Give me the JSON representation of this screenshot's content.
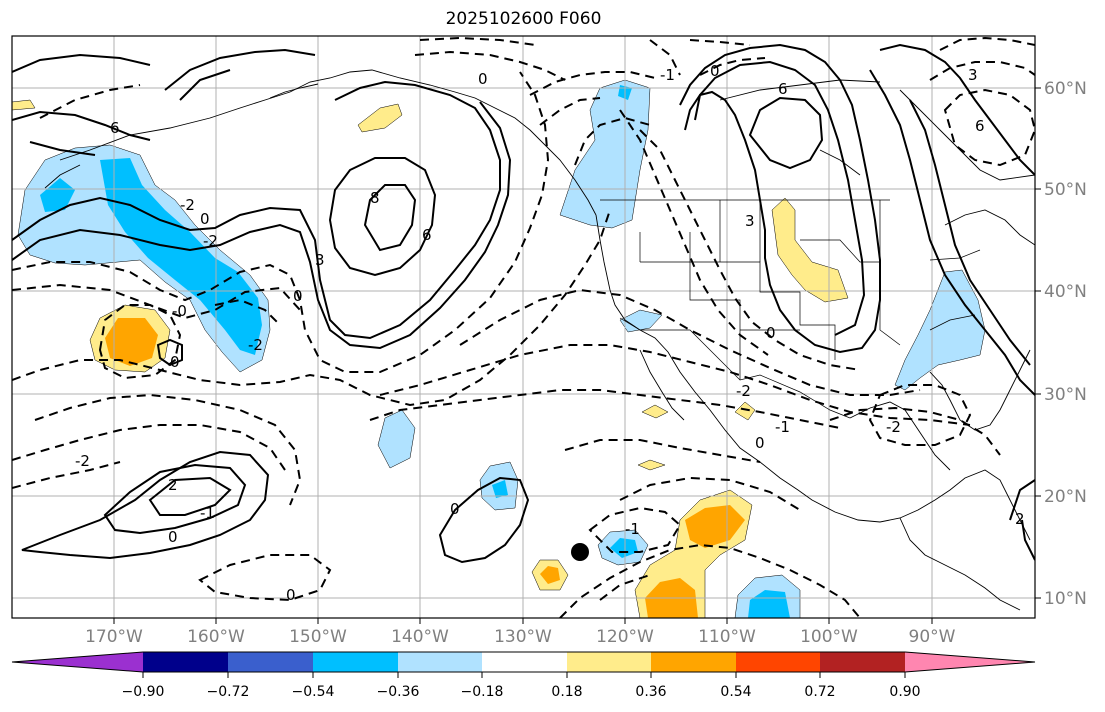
{
  "title": "2025102600 F060",
  "map": {
    "lat_labels": [
      "60°N",
      "50°N",
      "40°N",
      "30°N",
      "20°N",
      "10°N"
    ],
    "lon_labels": [
      "170°W",
      "160°W",
      "150°W",
      "140°W",
      "130°W",
      "120°W",
      "110°W",
      "100°W",
      "90°W"
    ],
    "lat_values": [
      60,
      50,
      40,
      30,
      20,
      10
    ],
    "lon_values": [
      -170,
      -160,
      -150,
      -140,
      -130,
      -120,
      -110,
      -100,
      -90
    ],
    "contour_labels": [
      "6",
      "-2",
      "0",
      "-2",
      "0",
      "8",
      "6",
      "3",
      "-0",
      "0",
      "-2",
      "0",
      "2",
      "-2",
      "-1",
      "0",
      "0",
      "0",
      "6",
      "3",
      "6",
      "3",
      "0",
      "-2",
      "-1",
      "0",
      "-2",
      "2",
      "0",
      "-1",
      "-1"
    ],
    "marker": "station-dot"
  },
  "colorbar": {
    "tick_labels": [
      "−0.90",
      "−0.72",
      "−0.54",
      "−0.36",
      "−0.18",
      "0.18",
      "0.36",
      "0.54",
      "0.72",
      "0.90"
    ],
    "colors": [
      "#9b30d0",
      "#00008b",
      "#3a5fcd",
      "#00bfff",
      "#b0e2ff",
      "#ffffff",
      "#ffec8b",
      "#ffa500",
      "#ff4500",
      "#b22222",
      "#ff86b0"
    ]
  }
}
